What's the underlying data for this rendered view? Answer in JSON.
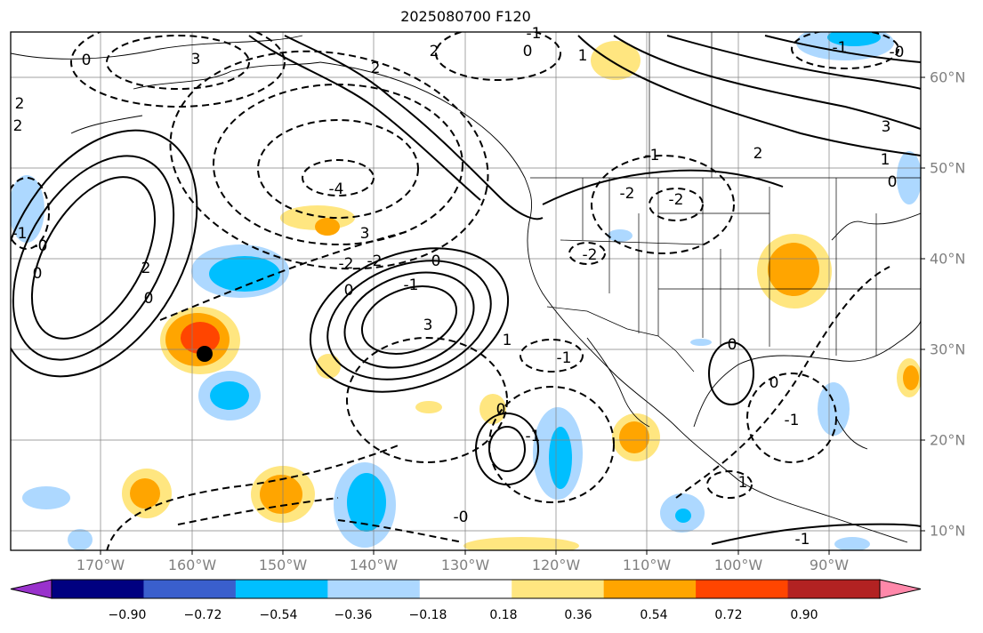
{
  "title": "2025080700 F120",
  "lon_labels": [
    "170°W",
    "160°W",
    "150°W",
    "140°W",
    "130°W",
    "120°W",
    "110°W",
    "100°W",
    "90°W"
  ],
  "lat_labels": [
    "60°N",
    "50°N",
    "40°N",
    "30°N",
    "20°N",
    "10°N"
  ],
  "colorbar": {
    "tick_labels": [
      "−0.90",
      "−0.72",
      "−0.54",
      "−0.36",
      "−0.18",
      "0.18",
      "0.36",
      "0.54",
      "0.72",
      "0.90"
    ],
    "colors": [
      "#9932cc",
      "#000080",
      "#3a5fcd",
      "#00bfff",
      "#add8ff",
      "#ffffff",
      "#ffe680",
      "#ffa500",
      "#ff4500",
      "#b22222",
      "#ff88aa"
    ]
  },
  "contour_labels": [
    {
      "text": "2"
    },
    {
      "text": "2"
    },
    {
      "text": "2"
    },
    {
      "text": "0"
    },
    {
      "text": "0"
    },
    {
      "text": "2"
    },
    {
      "text": "1"
    },
    {
      "text": "3"
    },
    {
      "text": "0"
    },
    {
      "text": "-1"
    },
    {
      "text": "-0"
    },
    {
      "text": "-4"
    },
    {
      "text": "3"
    },
    {
      "text": "-2"
    },
    {
      "text": "-2"
    },
    {
      "text": "0"
    },
    {
      "text": "3"
    },
    {
      "text": "-1"
    },
    {
      "text": "-2"
    },
    {
      "text": "-1"
    },
    {
      "text": "1"
    },
    {
      "text": "-2"
    },
    {
      "text": "-1"
    },
    {
      "text": "-2"
    },
    {
      "text": "0"
    },
    {
      "text": "-1"
    },
    {
      "text": "0"
    },
    {
      "text": "-1"
    },
    {
      "text": "-0"
    },
    {
      "text": "1"
    },
    {
      "text": "3"
    },
    {
      "text": "2"
    },
    {
      "text": "1"
    },
    {
      "text": "0"
    },
    {
      "text": "2"
    },
    {
      "text": "0"
    },
    {
      "text": "-0"
    },
    {
      "text": "-1"
    },
    {
      "text": "-1"
    },
    {
      "text": "0"
    },
    {
      "text": "0"
    },
    {
      "text": "-1"
    }
  ],
  "marker": {
    "name": "storm-center-dot"
  }
}
